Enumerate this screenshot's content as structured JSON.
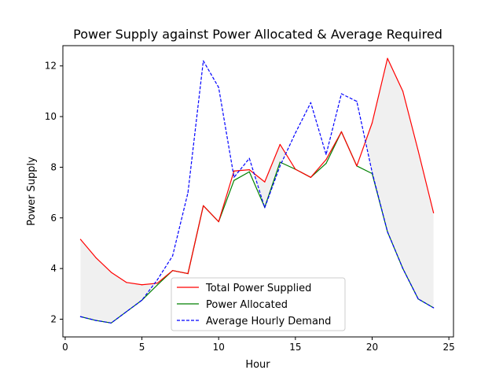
{
  "chart_data": {
    "type": "line",
    "title": "Power Supply against Power Allocated & Average Required",
    "xlabel": "Hour",
    "ylabel": "Power Supply",
    "xlim": [
      -0.15,
      25.3
    ],
    "ylim": [
      1.3,
      12.8
    ],
    "xticks": [
      0,
      5,
      10,
      15,
      20,
      25
    ],
    "yticks": [
      2,
      4,
      6,
      8,
      10,
      12
    ],
    "grid": false,
    "legend_position": "lower-center",
    "x": [
      1,
      2,
      3,
      4,
      5,
      6,
      7,
      8,
      9,
      10,
      11,
      12,
      13,
      14,
      15,
      16,
      17,
      18,
      19,
      20,
      21,
      22,
      23,
      24
    ],
    "series": [
      {
        "name": "Total Power Supplied",
        "color": "#ff0000",
        "style": "solid",
        "values": [
          5.15,
          4.43,
          3.85,
          3.45,
          3.36,
          3.42,
          3.92,
          3.8,
          6.48,
          5.85,
          7.85,
          7.9,
          7.42,
          8.9,
          7.92,
          7.6,
          8.3,
          9.4,
          8.05,
          9.75,
          12.3,
          11.0,
          8.65,
          6.2
        ]
      },
      {
        "name": "Power Allocated",
        "color": "#008000",
        "style": "solid",
        "values": [
          2.1,
          1.95,
          1.85,
          2.3,
          2.75,
          3.35,
          3.92,
          3.8,
          6.48,
          5.85,
          7.48,
          7.82,
          6.42,
          8.2,
          7.92,
          7.6,
          8.15,
          9.4,
          8.05,
          7.75,
          5.45,
          4.0,
          2.8,
          2.45
        ]
      },
      {
        "name": "Average Hourly Demand",
        "color": "#0000ff",
        "style": "dashed",
        "values": [
          2.1,
          1.95,
          1.85,
          2.3,
          2.75,
          3.55,
          4.5,
          7.0,
          12.2,
          11.15,
          7.6,
          8.35,
          6.4,
          8.05,
          9.35,
          10.55,
          8.5,
          10.9,
          10.6,
          7.8,
          5.45,
          4.0,
          2.8,
          2.45
        ]
      }
    ],
    "fill_between": {
      "upper": "Total Power Supplied",
      "lower": "Average Hourly Demand",
      "color": "#cccccc"
    }
  }
}
